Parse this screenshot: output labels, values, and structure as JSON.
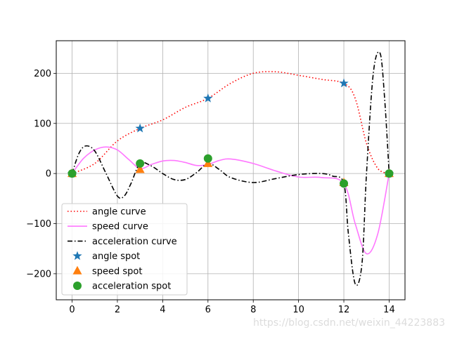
{
  "chart_data": {
    "type": "line",
    "title": "",
    "xlabel": "",
    "ylabel": "",
    "xlim": [
      -0.7,
      14.7
    ],
    "ylim": [
      -252,
      265
    ],
    "grid": true,
    "x_ticks": [
      0,
      2,
      4,
      6,
      8,
      10,
      12,
      14
    ],
    "y_ticks": [
      -200,
      -100,
      0,
      100,
      200
    ],
    "x_tick_labels": [
      "0",
      "2",
      "4",
      "6",
      "8",
      "10",
      "12",
      "14"
    ],
    "y_tick_labels": [
      "−200",
      "−100",
      "0",
      "100",
      "200"
    ],
    "legend_position": "lower-left",
    "series": [
      {
        "name": "angle curve",
        "kind": "line",
        "style": "dotted",
        "color": "#ff0000",
        "x": [
          0,
          1,
          2,
          3,
          4,
          5,
          6,
          7,
          8,
          9,
          10,
          11,
          12,
          12.5,
          13,
          13.5,
          14
        ],
        "values": [
          0,
          20,
          65,
          90,
          107,
          132,
          150,
          180,
          200,
          203,
          196,
          188,
          180,
          150,
          60,
          10,
          0
        ]
      },
      {
        "name": "speed curve",
        "kind": "line",
        "style": "solid",
        "color": "#ff77ff",
        "x": [
          0,
          0.5,
          1,
          1.5,
          2,
          2.5,
          3,
          3.5,
          4,
          4.5,
          5,
          5.5,
          6,
          6.5,
          7,
          8,
          9,
          10,
          11,
          12,
          12.5,
          13,
          13.5,
          14
        ],
        "values": [
          0,
          30,
          47,
          53,
          47,
          28,
          10,
          18,
          25,
          26,
          22,
          16,
          18,
          26,
          29,
          20,
          5,
          -7,
          -8,
          -20,
          -100,
          -160,
          -120,
          0
        ]
      },
      {
        "name": "acceleration curve",
        "kind": "line",
        "style": "dashdot",
        "color": "#000000",
        "x": [
          0,
          0.3,
          0.6,
          1,
          1.5,
          2,
          2.3,
          2.6,
          3,
          3.5,
          4,
          4.5,
          5,
          5.5,
          6,
          6.5,
          7,
          8,
          9,
          10,
          11,
          11.5,
          12,
          12.2,
          12.5,
          12.8,
          13,
          13.3,
          13.6,
          13.8,
          14
        ],
        "values": [
          0,
          40,
          55,
          45,
          0,
          -45,
          -45,
          -20,
          20,
          15,
          0,
          -12,
          -12,
          2,
          20,
          8,
          -8,
          -18,
          -10,
          -2,
          0,
          -5,
          -20,
          -120,
          -220,
          -180,
          0,
          200,
          240,
          150,
          0
        ]
      },
      {
        "name": "angle spot",
        "kind": "scatter",
        "marker": "star",
        "color": "#1f77b4",
        "x": [
          0,
          3,
          6,
          12,
          14
        ],
        "values": [
          0,
          90,
          150,
          180,
          0
        ]
      },
      {
        "name": "speed spot",
        "kind": "scatter",
        "marker": "triangle",
        "color": "#ff7f0e",
        "x": [
          0,
          3,
          6,
          12,
          14
        ],
        "values": [
          0,
          8,
          20,
          -18,
          0
        ]
      },
      {
        "name": "acceleration spot",
        "kind": "scatter",
        "marker": "circle",
        "color": "#2ca02c",
        "x": [
          0,
          3,
          6,
          12,
          14
        ],
        "values": [
          0,
          20,
          30,
          -20,
          0
        ]
      }
    ]
  },
  "watermark": "https://blog.csdn.net/weixin_44223883"
}
